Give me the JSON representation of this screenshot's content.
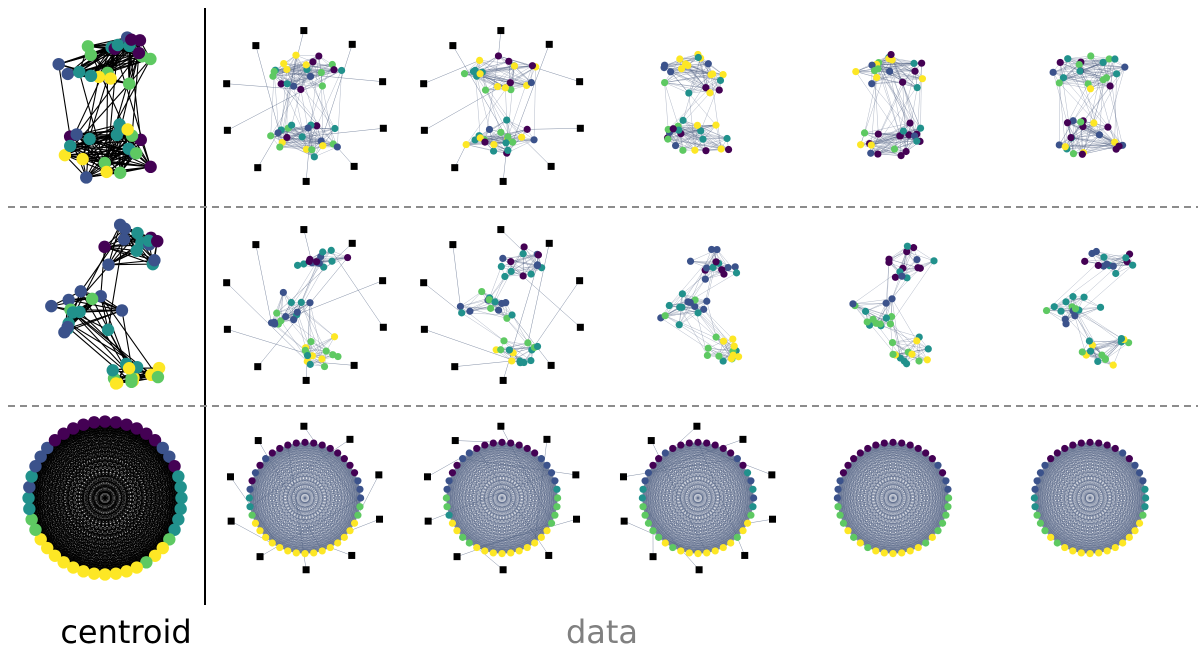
{
  "captions": {
    "centroid": "centroid",
    "data": "data"
  },
  "colors": {
    "centroid_edge": "#000000",
    "data_edge": "#4e5f80",
    "outlier_node": "#000000",
    "row_separator": "#8c8c8c",
    "column_divider": "#000000",
    "data_caption": "#808080",
    "viridis": [
      "#440154",
      "#3b528b",
      "#21918c",
      "#5ec962",
      "#fde725"
    ]
  },
  "rows": [
    {
      "structure": "two-communities",
      "columns": [
        {
          "role": "centroid"
        },
        {
          "role": "sample",
          "outlier_nodes": 10
        },
        {
          "role": "sample",
          "outlier_nodes": 10
        },
        {
          "role": "sample",
          "outlier_nodes": 0
        },
        {
          "role": "sample",
          "outlier_nodes": 0
        },
        {
          "role": "sample",
          "outlier_nodes": 0
        }
      ]
    },
    {
      "structure": "three-communities",
      "columns": [
        {
          "role": "centroid"
        },
        {
          "role": "sample",
          "outlier_nodes": 10
        },
        {
          "role": "sample",
          "outlier_nodes": 10
        },
        {
          "role": "sample",
          "outlier_nodes": 0
        },
        {
          "role": "sample",
          "outlier_nodes": 0
        },
        {
          "role": "sample",
          "outlier_nodes": 0
        }
      ]
    },
    {
      "structure": "ring",
      "columns": [
        {
          "role": "centroid"
        },
        {
          "role": "sample",
          "outlier_nodes": 10
        },
        {
          "role": "sample",
          "outlier_nodes": 10
        },
        {
          "role": "sample",
          "outlier_nodes": 10
        },
        {
          "role": "sample",
          "outlier_nodes": 0
        },
        {
          "role": "sample",
          "outlier_nodes": 0
        }
      ]
    }
  ]
}
